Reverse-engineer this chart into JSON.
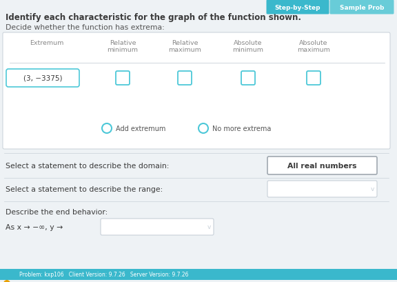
{
  "bg_color": "#eef2f5",
  "white": "#ffffff",
  "teal": "#4dc8d8",
  "card_bg": "#f5f7f9",
  "mid_gray": "#c8d0d8",
  "text_dark": "#3a3a3a",
  "text_medium": "#555555",
  "text_light": "#888888",
  "title_text": "Identify each characteristic for the graph of the function shown.",
  "subtitle_text": "Decide whether the function has extrema:",
  "col_headers": [
    "Extremum",
    "Relative\nminimum",
    "Relative\nmaximum",
    "Absolute\nminimum",
    "Absolute\nmaximum"
  ],
  "row_label": "(3, −3375)",
  "radio1_label": "Add extremum",
  "radio2_label": "No more extrema",
  "domain_label": "Select a statement to describe the domain:",
  "range_label": "Select a statement to describe the range:",
  "end_label": "Describe the end behavior:",
  "end_behavior": "As x → −∞, y →",
  "domain_answer": "All real numbers",
  "btn1_label": "Step-by-Step",
  "btn2_label": "Sample Prob",
  "btn1_color": "#3ab8cc",
  "btn2_color": "#68ccd8",
  "footer_text": "Problem: kxp106   Client Version: 9.7.26   Server Version: 9.7.26",
  "footer_bg": "#3ab8cc",
  "warn_color": "#e8a000"
}
